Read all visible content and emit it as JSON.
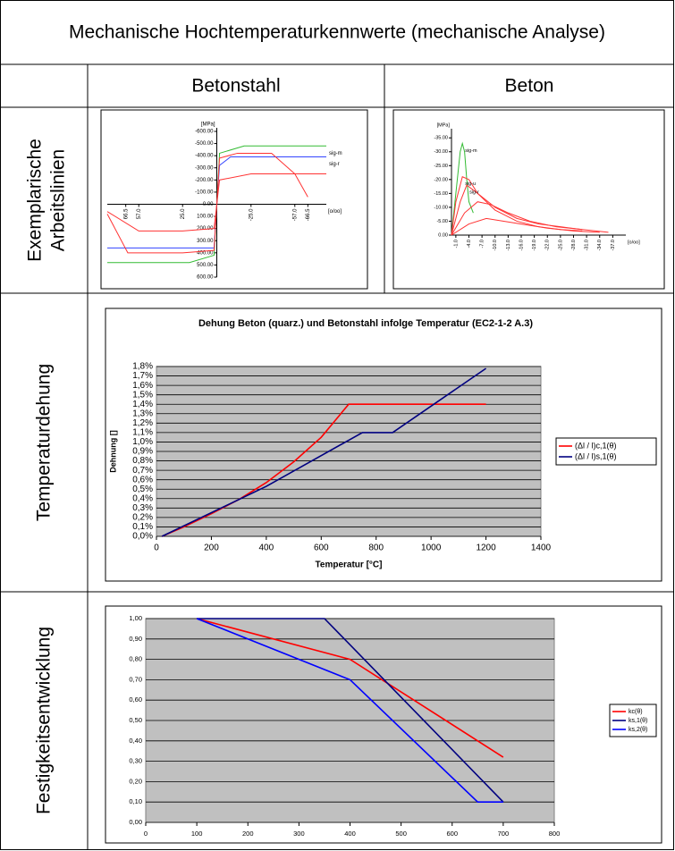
{
  "table": {
    "title": "Mechanische Hochtemperaturkennwerte (mechanische Analyse)",
    "columns": [
      "Betonstahl",
      "Beton"
    ],
    "row_labels": [
      [
        "Exemplarische",
        "Arbeitslinien"
      ],
      [
        "Temperaturdehung"
      ],
      [
        "Festigkeitsentwicklung"
      ]
    ]
  },
  "chart_data": [
    {
      "type": "line",
      "ylabel": "[MPa]",
      "xlabel": "[o/oo]",
      "series_label": "end",
      "xlim": [
        80,
        -80
      ],
      "ylim": [
        600,
        -600
      ],
      "xticks": [
        66.5,
        {
          "value": 57,
          "label": "57.0"
        },
        {
          "value": 25,
          "label": "25.0"
        },
        {
          "value": -25,
          "label": "-25.0"
        },
        {
          "value": -57,
          "label": "-57.0"
        },
        -66.5
      ],
      "yticks": [
        {
          "value": -600,
          "label": "-600.00"
        },
        {
          "value": -500,
          "label": "-500.00"
        },
        {
          "value": -400,
          "label": "-400.00"
        },
        {
          "value": -300,
          "label": "-300.00"
        },
        {
          "value": -200,
          "label": "-200.00"
        },
        {
          "value": -100,
          "label": "-100.00"
        },
        {
          "value": 0,
          "label": "0.00"
        },
        {
          "value": 100,
          "label": "100.00"
        },
        {
          "value": 200,
          "label": "200.00"
        },
        {
          "value": 300,
          "label": "300.00"
        },
        {
          "value": 400,
          "label": "400.00"
        },
        {
          "value": 500,
          "label": "500.00"
        },
        {
          "value": 600,
          "label": "600.00"
        }
      ],
      "series": [
        {
          "name": "sig-m",
          "color": "#33bb33",
          "x": [
            80,
            20,
            2,
            0,
            -2,
            -20,
            -80
          ],
          "values": [
            480,
            480,
            420,
            0,
            -420,
            -480,
            -480
          ]
        },
        {
          "name": "sig-r",
          "color": "#3344ff",
          "x": [
            80,
            2,
            0,
            -2,
            -10,
            -80
          ],
          "values": [
            360,
            360,
            0,
            -320,
            -390,
            -390
          ]
        },
        {
          "color": "#ff3333",
          "x": [
            80,
            65,
            57,
            25,
            2,
            0,
            -2,
            -15,
            -40,
            -57,
            -80
          ],
          "values": [
            80,
            400,
            400,
            400,
            380,
            0,
            -380,
            -420,
            -420,
            -250,
            -250
          ]
        },
        {
          "color": "#ff3333",
          "x": [
            80,
            57,
            25,
            2,
            0,
            -2,
            -25,
            -57,
            -66.5
          ],
          "values": [
            60,
            220,
            220,
            200,
            0,
            -200,
            -250,
            -250,
            -60
          ]
        }
      ]
    },
    {
      "type": "line",
      "ylabel": "[MPa]",
      "xlabel": "[o/oo]",
      "series_label": "peak",
      "xlim": [
        0,
        -40
      ],
      "ylim": [
        0,
        -37
      ],
      "xticks": [
        {
          "value": -1,
          "label": "-1.0"
        },
        {
          "value": -4,
          "label": "-4.0"
        },
        {
          "value": -7,
          "label": "-7.0"
        },
        {
          "value": -10,
          "label": "-10.0"
        },
        {
          "value": -13,
          "label": "-13.0"
        },
        {
          "value": -16,
          "label": "-16.0"
        },
        {
          "value": -19,
          "label": "-19.0"
        },
        {
          "value": -22,
          "label": "-22.0"
        },
        {
          "value": -25,
          "label": "-25.0"
        },
        {
          "value": -28,
          "label": "-28.0"
        },
        {
          "value": -31,
          "label": "-31.0"
        },
        {
          "value": -34,
          "label": "-34.0"
        },
        {
          "value": -37,
          "label": "-37.0"
        }
      ],
      "yticks": [
        {
          "value": 0,
          "label": "0.00"
        },
        {
          "value": -5,
          "label": "-5.00"
        },
        {
          "value": -10,
          "label": "-10.00"
        },
        {
          "value": -15,
          "label": "-15.00"
        },
        {
          "value": -20,
          "label": "-20.00"
        },
        {
          "value": -25,
          "label": "-25.00"
        },
        {
          "value": -30,
          "label": "-30.00"
        },
        {
          "value": -35,
          "label": "-35.00"
        }
      ],
      "series": [
        {
          "name": "sig-m",
          "color": "#33bb33",
          "x": [
            0,
            -1,
            -2,
            -2.5,
            -3,
            -3.5,
            -4,
            -5
          ],
          "values": [
            0,
            -15,
            -30,
            -33,
            -30,
            -20,
            -12,
            -8
          ]
        },
        {
          "name": "sig-u",
          "color": "#ff3333",
          "x": [
            0,
            -1,
            -2.5,
            -4,
            -6,
            -10,
            -15,
            -20,
            -25,
            -30
          ],
          "values": [
            0,
            -12,
            -21,
            -20,
            -15,
            -9,
            -5,
            -3,
            -2,
            -1.5
          ]
        },
        {
          "name": "sig-r",
          "color": "#ff3333",
          "x": [
            0,
            -2,
            -3.5,
            -6,
            -10,
            -15,
            -20,
            -25,
            -30
          ],
          "values": [
            0,
            -12,
            -18,
            -15,
            -10,
            -6,
            -4,
            -3,
            -2
          ]
        },
        {
          "color": "#ff3333",
          "x": [
            0,
            -3,
            -6,
            -9,
            -13,
            -18,
            -24,
            -30,
            -36
          ],
          "values": [
            0,
            -8,
            -12,
            -11,
            -8,
            -5,
            -3,
            -2,
            -1
          ]
        },
        {
          "color": "#ff3333",
          "x": [
            0,
            -4,
            -8,
            -12,
            -16,
            -22,
            -28,
            -34
          ],
          "values": [
            0,
            -4,
            -6,
            -5,
            -4,
            -2.5,
            -1.5,
            -1
          ]
        }
      ]
    },
    {
      "type": "line",
      "title": "Dehung Beton (quarz.) und Betonstahl infolge Temperatur (EC2-1-2 A.3)",
      "xlabel": "Temperatur [°C]",
      "ylabel": "Dehnung []",
      "legend": "right",
      "grid": true,
      "plot_background": "#c0c0c0",
      "xlim": [
        0,
        1400
      ],
      "xticks": [
        0,
        200,
        400,
        600,
        800,
        1000,
        1200,
        1400
      ],
      "ylim": [
        0,
        1.8
      ],
      "yticks": [
        {
          "value": 0,
          "label": "0,0%"
        },
        {
          "value": 0.1,
          "label": "0,1%"
        },
        {
          "value": 0.2,
          "label": "0,2%"
        },
        {
          "value": 0.3,
          "label": "0,3%"
        },
        {
          "value": 0.4,
          "label": "0,4%"
        },
        {
          "value": 0.5,
          "label": "0,5%"
        },
        {
          "value": 0.6,
          "label": "0,6%"
        },
        {
          "value": 0.7,
          "label": "0,7%"
        },
        {
          "value": 0.8,
          "label": "0,8%"
        },
        {
          "value": 0.9,
          "label": "0,9%"
        },
        {
          "value": 1.0,
          "label": "1,0%"
        },
        {
          "value": 1.1,
          "label": "1,1%"
        },
        {
          "value": 1.2,
          "label": "1,2%"
        },
        {
          "value": 1.3,
          "label": "1,3%"
        },
        {
          "value": 1.4,
          "label": "1,4%"
        },
        {
          "value": 1.5,
          "label": "1,5%"
        },
        {
          "value": 1.6,
          "label": "1,6%"
        },
        {
          "value": 1.7,
          "label": "1,7%"
        },
        {
          "value": 1.8,
          "label": "1,8%"
        }
      ],
      "series": [
        {
          "name": "(Δl / l)c,1(θ)",
          "color": "#ff0000",
          "x": [
            20,
            100,
            200,
            300,
            400,
            500,
            600,
            700,
            1200
          ],
          "values": [
            0,
            0.1,
            0.24,
            0.39,
            0.57,
            0.79,
            1.05,
            1.4,
            1.4
          ]
        },
        {
          "name": "(Δl / l)s,1(θ)",
          "color": "#000080",
          "x": [
            20,
            400,
            750,
            860,
            1200
          ],
          "values": [
            0,
            0.53,
            1.1,
            1.1,
            1.78
          ]
        }
      ]
    },
    {
      "type": "line",
      "legend": "right",
      "grid": true,
      "plot_background": "#c0c0c0",
      "xlim": [
        0,
        800
      ],
      "xticks": [
        0,
        100,
        200,
        300,
        400,
        500,
        600,
        700,
        800
      ],
      "ylim": [
        0,
        1
      ],
      "yticks": [
        {
          "value": 0,
          "label": "0,00"
        },
        {
          "value": 0.1,
          "label": "0,10"
        },
        {
          "value": 0.2,
          "label": "0,20"
        },
        {
          "value": 0.3,
          "label": "0,30"
        },
        {
          "value": 0.4,
          "label": "0,40"
        },
        {
          "value": 0.5,
          "label": "0,50"
        },
        {
          "value": 0.6,
          "label": "0,60"
        },
        {
          "value": 0.7,
          "label": "0,70"
        },
        {
          "value": 0.8,
          "label": "0,80"
        },
        {
          "value": 0.9,
          "label": "0,90"
        },
        {
          "value": 1.0,
          "label": "1,00"
        }
      ],
      "series": [
        {
          "name": "kc(θ)",
          "color": "#ff0000",
          "x": [
            100,
            400,
            700
          ],
          "values": [
            1.0,
            0.8,
            0.32
          ]
        },
        {
          "name": "ks,1(θ)",
          "color": "#000080",
          "x": [
            100,
            350,
            700
          ],
          "values": [
            1.0,
            1.0,
            0.1
          ]
        },
        {
          "name": "ks,2(θ)",
          "color": "#0000ff",
          "x": [
            100,
            400,
            650,
            700
          ],
          "values": [
            1.0,
            0.7,
            0.1,
            0.1
          ]
        }
      ]
    }
  ]
}
